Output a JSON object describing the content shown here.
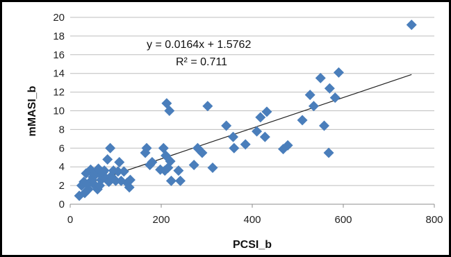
{
  "chart_data": {
    "type": "scatter",
    "title": "",
    "xlabel": "PCSI_b",
    "ylabel": "mMASI_b",
    "xlim": [
      0,
      800
    ],
    "ylim": [
      0,
      20
    ],
    "x_ticks": [
      0,
      200,
      400,
      600,
      800
    ],
    "y_ticks": [
      0,
      2,
      4,
      6,
      8,
      10,
      12,
      14,
      16,
      18,
      20
    ],
    "grid": "horizontal",
    "marker": "diamond",
    "marker_color": "#4a7ebb",
    "trendline": {
      "type": "linear",
      "slope": 0.0164,
      "intercept": 1.5762,
      "x_range": [
        20,
        750
      ],
      "color": "#222222",
      "equation_label": "y = 0.0164x + 1.5762",
      "r2_label": "R² = 0.711"
    },
    "series": [
      {
        "points": [
          [
            20,
            0.9
          ],
          [
            25,
            2.0
          ],
          [
            30,
            2.4
          ],
          [
            32,
            1.2
          ],
          [
            35,
            3.3
          ],
          [
            38,
            2.1
          ],
          [
            40,
            1.6
          ],
          [
            45,
            3.7
          ],
          [
            48,
            2.6
          ],
          [
            50,
            2.9
          ],
          [
            52,
            3.2
          ],
          [
            55,
            2.0
          ],
          [
            58,
            3.5
          ],
          [
            60,
            1.6
          ],
          [
            62,
            3.8
          ],
          [
            65,
            2.0
          ],
          [
            68,
            2.6
          ],
          [
            70,
            3.0
          ],
          [
            72,
            3.4
          ],
          [
            75,
            3.6
          ],
          [
            78,
            2.8
          ],
          [
            82,
            4.8
          ],
          [
            85,
            2.4
          ],
          [
            88,
            6.0
          ],
          [
            90,
            3.0
          ],
          [
            95,
            3.6
          ],
          [
            100,
            2.5
          ],
          [
            105,
            3.5
          ],
          [
            108,
            4.5
          ],
          [
            112,
            2.5
          ],
          [
            118,
            3.5
          ],
          [
            125,
            2.3
          ],
          [
            130,
            1.8
          ],
          [
            132,
            2.6
          ],
          [
            165,
            5.5
          ],
          [
            168,
            6.0
          ],
          [
            175,
            4.2
          ],
          [
            180,
            4.5
          ],
          [
            198,
            3.7
          ],
          [
            205,
            6.0
          ],
          [
            208,
            3.6
          ],
          [
            210,
            5.2
          ],
          [
            212,
            10.8
          ],
          [
            215,
            3.9
          ],
          [
            218,
            10.0
          ],
          [
            220,
            4.6
          ],
          [
            222,
            2.5
          ],
          [
            238,
            3.6
          ],
          [
            242,
            2.5
          ],
          [
            272,
            4.2
          ],
          [
            280,
            6.0
          ],
          [
            290,
            5.5
          ],
          [
            302,
            10.5
          ],
          [
            313,
            3.9
          ],
          [
            343,
            8.4
          ],
          [
            358,
            7.2
          ],
          [
            360,
            6.0
          ],
          [
            385,
            6.4
          ],
          [
            410,
            7.8
          ],
          [
            418,
            9.3
          ],
          [
            428,
            7.2
          ],
          [
            432,
            9.9
          ],
          [
            468,
            5.9
          ],
          [
            478,
            6.3
          ],
          [
            510,
            9.0
          ],
          [
            527,
            11.7
          ],
          [
            535,
            10.5
          ],
          [
            550,
            13.5
          ],
          [
            558,
            8.4
          ],
          [
            568,
            5.5
          ],
          [
            570,
            12.4
          ],
          [
            582,
            11.4
          ],
          [
            590,
            14.1
          ],
          [
            750,
            19.2
          ]
        ]
      }
    ]
  }
}
